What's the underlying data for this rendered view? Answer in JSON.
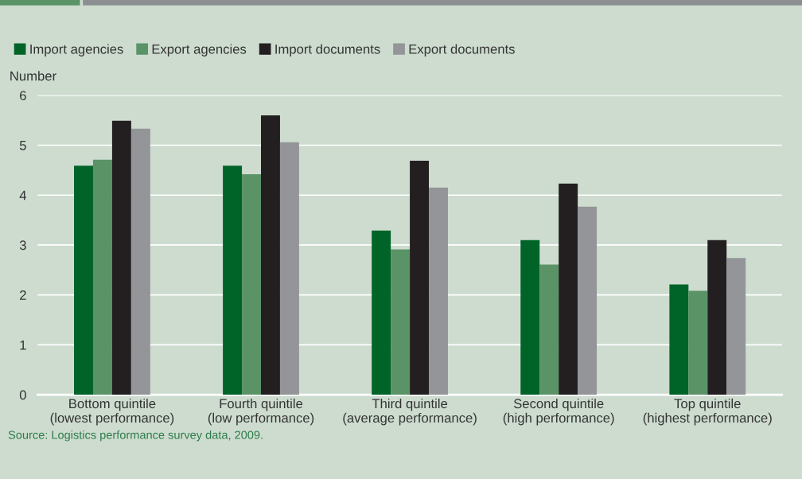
{
  "chart_data": {
    "type": "bar",
    "ylabel": "Number",
    "categories": [
      "Bottom quintile\n(lowest performance)",
      "Fourth quintile\n(low performance)",
      "Third quintile\n(average performance)",
      "Second quintile\n(high performance)",
      "Top quintile\n(highest performance)"
    ],
    "series": [
      {
        "name": "Import agencies",
        "color": "#006428",
        "values": [
          4.59,
          4.59,
          3.29,
          3.1,
          2.21
        ]
      },
      {
        "name": "Export agencies",
        "color": "#5a9366",
        "values": [
          4.71,
          4.42,
          2.91,
          2.61,
          2.08
        ]
      },
      {
        "name": "Import documents",
        "color": "#231f20",
        "values": [
          5.49,
          5.6,
          4.69,
          4.23,
          3.1
        ]
      },
      {
        "name": "Export documents",
        "color": "#939598",
        "values": [
          5.33,
          5.06,
          4.15,
          3.77,
          2.74
        ]
      }
    ],
    "ylim": [
      0,
      6
    ],
    "yticks": [
      0,
      1,
      2,
      3,
      4,
      5,
      6
    ],
    "grid": "y",
    "legend": "top left",
    "annotations": [
      "Source: Logistics performance survey data, 2009."
    ]
  }
}
